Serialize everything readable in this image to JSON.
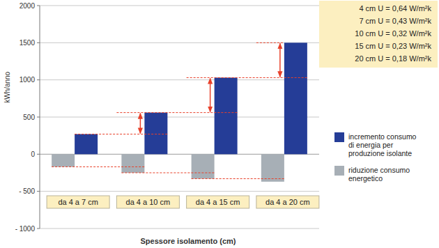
{
  "chart_data": {
    "type": "bar",
    "x_label": "Spessore isolamento (cm)",
    "y_label": "kWh/anno",
    "categories": [
      "da 4 a 7 cm",
      "da 4 a 10 cm",
      "da 4 a 15 cm",
      "da 4 a 20 cm"
    ],
    "series": [
      {
        "name": "incremento consumo di energia per produzione isolante",
        "color": "#253d97",
        "values": [
          270,
          560,
          1030,
          1500
        ]
      },
      {
        "name": "riduzione consumo energetico",
        "color": "#a7afb6",
        "values": [
          -170,
          -250,
          -330,
          -370
        ]
      }
    ],
    "ylim": [
      -1000,
      2000
    ],
    "yticks": [
      {
        "value": -1000,
        "label": "- 1000"
      },
      {
        "value": -500,
        "label": "- 500"
      },
      0,
      500,
      1000,
      1500,
      2000
    ],
    "grid": true,
    "legend": "right",
    "annotations": [
      "4 cm U = 0,64 W/m²k",
      "7 cm U = 0,43 W/m²k",
      "10 cm U = 0,32 W/m²k",
      "15 cm U = 0,23 W/m²k",
      "20 cm U = 0,18 W/m²k"
    ]
  }
}
